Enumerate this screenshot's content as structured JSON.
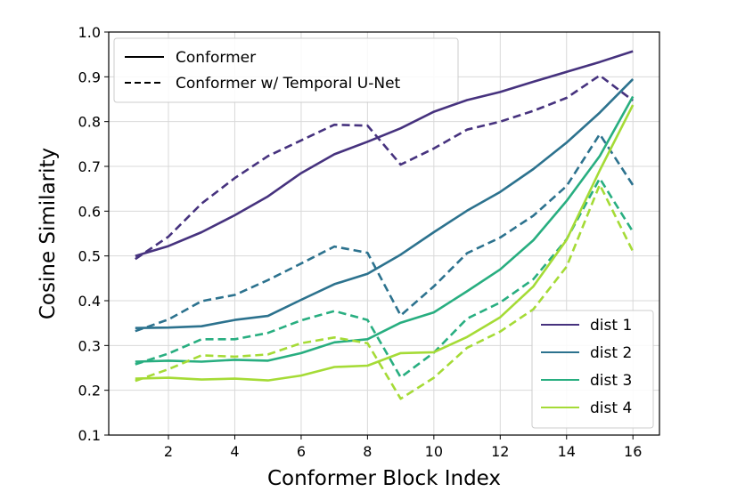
{
  "chart_data": {
    "type": "line",
    "xlabel": "Conformer Block Index",
    "ylabel": "Cosine Similarity",
    "xlim": [
      0.2,
      16.8
    ],
    "ylim": [
      0.1,
      1.0
    ],
    "x_ticks": [
      2,
      4,
      6,
      8,
      10,
      12,
      14,
      16
    ],
    "y_ticks": [
      0.1,
      0.2,
      0.3,
      0.4,
      0.5,
      0.6,
      0.7,
      0.8,
      0.9,
      1.0
    ],
    "x_tick_labels": [
      "2",
      "4",
      "6",
      "8",
      "10",
      "12",
      "14",
      "16"
    ],
    "y_tick_labels": [
      "0.1",
      "0.2",
      "0.3",
      "0.4",
      "0.5",
      "0.6",
      "0.7",
      "0.8",
      "0.9",
      "1.0"
    ],
    "grid": true,
    "x": [
      1,
      2,
      3,
      4,
      5,
      6,
      7,
      8,
      9,
      10,
      11,
      12,
      13,
      14,
      15,
      16
    ],
    "style_legend": {
      "placement": "top-left",
      "entries": [
        {
          "label": "Conformer",
          "dash": "solid"
        },
        {
          "label": "Conformer w/ Temporal U-Net",
          "dash": "dashed"
        }
      ]
    },
    "color_legend": {
      "placement": "bottom-right",
      "entries": [
        {
          "label": "dist 1",
          "color": "#46327e"
        },
        {
          "label": "dist 2",
          "color": "#2c728e"
        },
        {
          "label": "dist 3",
          "color": "#28ae80"
        },
        {
          "label": "dist 4",
          "color": "#a5db36"
        }
      ]
    },
    "series": [
      {
        "name": "dist 1",
        "model": "Conformer",
        "color": "#46327e",
        "dash": "solid",
        "values": [
          0.5,
          0.522,
          0.553,
          0.591,
          0.633,
          0.685,
          0.727,
          0.755,
          0.785,
          0.822,
          0.848,
          0.866,
          0.889,
          0.911,
          0.933,
          0.957
        ]
      },
      {
        "name": "dist 1",
        "model": "Conformer w/ Temporal U-Net",
        "color": "#46327e",
        "dash": "dashed",
        "values": [
          0.493,
          0.543,
          0.617,
          0.674,
          0.723,
          0.758,
          0.793,
          0.791,
          0.704,
          0.74,
          0.782,
          0.8,
          0.824,
          0.853,
          0.903,
          0.847
        ]
      },
      {
        "name": "dist 2",
        "model": "Conformer",
        "color": "#2c728e",
        "dash": "solid",
        "values": [
          0.339,
          0.34,
          0.343,
          0.357,
          0.366,
          0.402,
          0.437,
          0.46,
          0.503,
          0.553,
          0.601,
          0.643,
          0.694,
          0.753,
          0.82,
          0.895
        ]
      },
      {
        "name": "dist 2",
        "model": "Conformer w/ Temporal U-Net",
        "color": "#2c728e",
        "dash": "dashed",
        "values": [
          0.332,
          0.358,
          0.399,
          0.413,
          0.446,
          0.483,
          0.521,
          0.507,
          0.367,
          0.432,
          0.506,
          0.541,
          0.59,
          0.656,
          0.772,
          0.658
        ]
      },
      {
        "name": "dist 3",
        "model": "Conformer",
        "color": "#28ae80",
        "dash": "solid",
        "values": [
          0.264,
          0.266,
          0.264,
          0.268,
          0.266,
          0.283,
          0.307,
          0.314,
          0.351,
          0.374,
          0.421,
          0.47,
          0.535,
          0.623,
          0.723,
          0.856
        ]
      },
      {
        "name": "dist 3",
        "model": "Conformer w/ Temporal U-Net",
        "color": "#28ae80",
        "dash": "dashed",
        "values": [
          0.258,
          0.282,
          0.314,
          0.314,
          0.328,
          0.356,
          0.377,
          0.357,
          0.229,
          0.284,
          0.36,
          0.396,
          0.448,
          0.537,
          0.673,
          0.554
        ]
      },
      {
        "name": "dist 4",
        "model": "Conformer",
        "color": "#a5db36",
        "dash": "solid",
        "values": [
          0.226,
          0.228,
          0.224,
          0.226,
          0.222,
          0.233,
          0.252,
          0.255,
          0.283,
          0.285,
          0.319,
          0.363,
          0.432,
          0.536,
          0.691,
          0.837
        ]
      },
      {
        "name": "dist 4",
        "model": "Conformer w/ Temporal U-Net",
        "color": "#a5db36",
        "dash": "dashed",
        "values": [
          0.221,
          0.247,
          0.278,
          0.275,
          0.28,
          0.305,
          0.318,
          0.305,
          0.181,
          0.228,
          0.295,
          0.331,
          0.381,
          0.476,
          0.659,
          0.51
        ]
      }
    ]
  }
}
